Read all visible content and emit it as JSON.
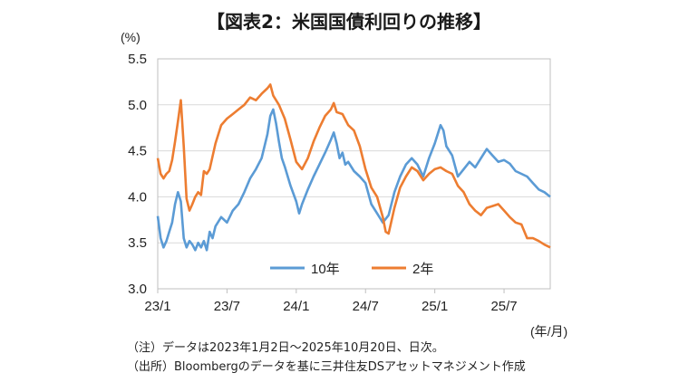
{
  "header": {
    "title": "【図表2：米国国債利回りの推移】"
  },
  "notes": {
    "line1": "（注）データは2023年1月2日～2025年10月20日、日次。",
    "line2": "（出所）Bloombergのデータを基に三井住友DSアセットマネジメント作成"
  },
  "chart_data": {
    "type": "line",
    "title": "【図表2：米国国債利回りの推移】",
    "ylabel": "(%)",
    "xlabel": "(年/月)",
    "ylim": [
      3.0,
      5.5
    ],
    "yticks": [
      "3.0",
      "3.5",
      "4.0",
      "4.5",
      "5.0",
      "5.5"
    ],
    "xlim": [
      0,
      34
    ],
    "xticks": [
      {
        "label": "23/1",
        "x": 0
      },
      {
        "label": "23/7",
        "x": 6
      },
      {
        "label": "24/1",
        "x": 12
      },
      {
        "label": "24/7",
        "x": 18
      },
      {
        "label": "25/1",
        "x": 24
      },
      {
        "label": "25/7",
        "x": 30
      }
    ],
    "grid": true,
    "legend_position": "bottom-center",
    "series": [
      {
        "name": "10年",
        "color": "#5b9bd5",
        "points": [
          [
            0,
            3.79
          ],
          [
            0.25,
            3.55
          ],
          [
            0.5,
            3.45
          ],
          [
            0.75,
            3.52
          ],
          [
            1,
            3.62
          ],
          [
            1.25,
            3.72
          ],
          [
            1.5,
            3.92
          ],
          [
            1.75,
            4.05
          ],
          [
            2,
            3.95
          ],
          [
            2.25,
            3.55
          ],
          [
            2.5,
            3.45
          ],
          [
            2.75,
            3.52
          ],
          [
            3,
            3.48
          ],
          [
            3.25,
            3.42
          ],
          [
            3.5,
            3.5
          ],
          [
            3.75,
            3.45
          ],
          [
            4,
            3.52
          ],
          [
            4.25,
            3.42
          ],
          [
            4.5,
            3.62
          ],
          [
            4.75,
            3.55
          ],
          [
            5,
            3.68
          ],
          [
            5.5,
            3.78
          ],
          [
            6,
            3.72
          ],
          [
            6.5,
            3.85
          ],
          [
            7,
            3.92
          ],
          [
            7.5,
            4.05
          ],
          [
            8,
            4.2
          ],
          [
            8.5,
            4.3
          ],
          [
            9,
            4.42
          ],
          [
            9.5,
            4.68
          ],
          [
            9.75,
            4.88
          ],
          [
            10,
            4.95
          ],
          [
            10.25,
            4.8
          ],
          [
            10.5,
            4.6
          ],
          [
            10.75,
            4.42
          ],
          [
            11,
            4.33
          ],
          [
            11.5,
            4.12
          ],
          [
            12,
            3.95
          ],
          [
            12.25,
            3.82
          ],
          [
            12.5,
            3.92
          ],
          [
            13,
            4.08
          ],
          [
            13.5,
            4.22
          ],
          [
            14,
            4.35
          ],
          [
            14.5,
            4.48
          ],
          [
            15,
            4.62
          ],
          [
            15.25,
            4.7
          ],
          [
            15.5,
            4.58
          ],
          [
            15.75,
            4.42
          ],
          [
            16,
            4.48
          ],
          [
            16.25,
            4.35
          ],
          [
            16.5,
            4.38
          ],
          [
            17,
            4.28
          ],
          [
            17.5,
            4.22
          ],
          [
            18,
            4.15
          ],
          [
            18.5,
            3.92
          ],
          [
            19,
            3.82
          ],
          [
            19.5,
            3.72
          ],
          [
            20,
            3.8
          ],
          [
            20.5,
            4.05
          ],
          [
            21,
            4.22
          ],
          [
            21.5,
            4.35
          ],
          [
            22,
            4.42
          ],
          [
            22.5,
            4.35
          ],
          [
            23,
            4.22
          ],
          [
            23.5,
            4.42
          ],
          [
            24,
            4.58
          ],
          [
            24.5,
            4.78
          ],
          [
            24.75,
            4.72
          ],
          [
            25,
            4.55
          ],
          [
            25.5,
            4.45
          ],
          [
            26,
            4.22
          ],
          [
            26.5,
            4.3
          ],
          [
            27,
            4.38
          ],
          [
            27.5,
            4.32
          ],
          [
            28,
            4.42
          ],
          [
            28.5,
            4.52
          ],
          [
            29,
            4.45
          ],
          [
            29.5,
            4.38
          ],
          [
            30,
            4.4
          ],
          [
            30.5,
            4.36
          ],
          [
            31,
            4.28
          ],
          [
            31.5,
            4.25
          ],
          [
            32,
            4.22
          ],
          [
            32.5,
            4.15
          ],
          [
            33,
            4.08
          ],
          [
            33.5,
            4.05
          ],
          [
            34,
            4.0
          ]
        ]
      },
      {
        "name": "2年",
        "color": "#ed7d31",
        "points": [
          [
            0,
            4.42
          ],
          [
            0.25,
            4.25
          ],
          [
            0.5,
            4.2
          ],
          [
            0.75,
            4.25
          ],
          [
            1,
            4.28
          ],
          [
            1.25,
            4.4
          ],
          [
            1.5,
            4.6
          ],
          [
            1.75,
            4.82
          ],
          [
            2,
            5.05
          ],
          [
            2.25,
            4.55
          ],
          [
            2.5,
            3.98
          ],
          [
            2.75,
            3.85
          ],
          [
            3,
            3.92
          ],
          [
            3.25,
            4.0
          ],
          [
            3.5,
            4.05
          ],
          [
            3.75,
            4.02
          ],
          [
            4,
            4.28
          ],
          [
            4.25,
            4.25
          ],
          [
            4.5,
            4.3
          ],
          [
            5,
            4.58
          ],
          [
            5.5,
            4.78
          ],
          [
            6,
            4.85
          ],
          [
            6.5,
            4.9
          ],
          [
            7,
            4.95
          ],
          [
            7.5,
            5.0
          ],
          [
            8,
            5.08
          ],
          [
            8.5,
            5.05
          ],
          [
            9,
            5.12
          ],
          [
            9.5,
            5.18
          ],
          [
            9.75,
            5.22
          ],
          [
            10,
            5.1
          ],
          [
            10.5,
            5.0
          ],
          [
            11,
            4.85
          ],
          [
            11.5,
            4.62
          ],
          [
            12,
            4.38
          ],
          [
            12.5,
            4.3
          ],
          [
            13,
            4.42
          ],
          [
            13.5,
            4.6
          ],
          [
            14,
            4.75
          ],
          [
            14.5,
            4.88
          ],
          [
            15,
            4.95
          ],
          [
            15.25,
            5.02
          ],
          [
            15.5,
            4.92
          ],
          [
            16,
            4.9
          ],
          [
            16.5,
            4.78
          ],
          [
            17,
            4.72
          ],
          [
            17.5,
            4.55
          ],
          [
            18,
            4.3
          ],
          [
            18.5,
            4.1
          ],
          [
            19,
            4.0
          ],
          [
            19.5,
            3.78
          ],
          [
            19.75,
            3.62
          ],
          [
            20,
            3.6
          ],
          [
            20.5,
            3.88
          ],
          [
            21,
            4.1
          ],
          [
            21.5,
            4.22
          ],
          [
            22,
            4.32
          ],
          [
            22.5,
            4.28
          ],
          [
            23,
            4.18
          ],
          [
            23.5,
            4.25
          ],
          [
            24,
            4.3
          ],
          [
            24.5,
            4.32
          ],
          [
            25,
            4.28
          ],
          [
            25.5,
            4.25
          ],
          [
            26,
            4.12
          ],
          [
            26.5,
            4.05
          ],
          [
            27,
            3.92
          ],
          [
            27.5,
            3.85
          ],
          [
            28,
            3.8
          ],
          [
            28.5,
            3.88
          ],
          [
            29,
            3.9
          ],
          [
            29.5,
            3.92
          ],
          [
            30,
            3.85
          ],
          [
            30.5,
            3.78
          ],
          [
            31,
            3.72
          ],
          [
            31.5,
            3.7
          ],
          [
            32,
            3.55
          ],
          [
            32.5,
            3.55
          ],
          [
            33,
            3.52
          ],
          [
            33.5,
            3.48
          ],
          [
            34,
            3.45
          ]
        ]
      }
    ]
  }
}
